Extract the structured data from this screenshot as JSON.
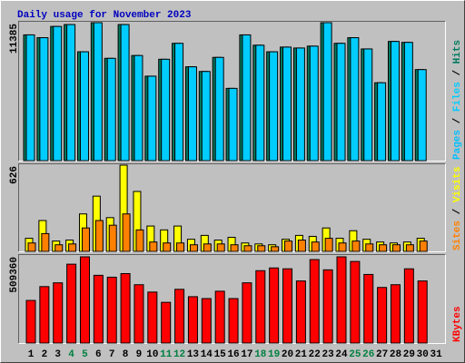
{
  "title": "Daily usage for November 2023",
  "chart_data": [
    {
      "type": "bar",
      "series": [
        {
          "name": "Hits",
          "color": "#007a5e",
          "values": [
            10378,
            10146,
            11075,
            11230,
            8984,
            11385,
            8442,
            11230,
            8674,
            6970,
            8365,
            9681,
            7745,
            7358,
            8520,
            5964,
            10378,
            9526,
            8984,
            9371,
            9294,
            9449,
            11385,
            9681,
            10146,
            9217,
            6428,
            9836,
            9759,
            7513,
            null
          ]
        },
        {
          "name": "Files",
          "color": "#00ccff",
          "values": [
            10378,
            10146,
            11075,
            11230,
            8984,
            11385,
            8442,
            11230,
            8674,
            6970,
            8365,
            9681,
            7745,
            7358,
            8520,
            5964,
            10378,
            9526,
            8984,
            9371,
            9294,
            9449,
            11385,
            9681,
            10146,
            9217,
            6428,
            9836,
            9759,
            7513,
            null
          ]
        }
      ],
      "extra_legend": {
        "name": "Pages",
        "color": "#00c0ff"
      },
      "legend_separator": " / ",
      "ylim": [
        0,
        11385
      ],
      "yticks": [
        11385
      ]
    },
    {
      "type": "bar",
      "series": [
        {
          "name": "Visits",
          "color": "#ffff00",
          "values": [
            95,
            224,
            75,
            82,
            272,
            401,
            245,
            626,
            435,
            184,
            156,
            184,
            88,
            116,
            82,
            102,
            61,
            54,
            48,
            88,
            116,
            109,
            170,
            95,
            150,
            88,
            68,
            61,
            68,
            95,
            null
          ]
        },
        {
          "name": "Sites",
          "color": "#ff8000",
          "values": [
            61,
            129,
            48,
            54,
            170,
            224,
            190,
            272,
            156,
            68,
            61,
            61,
            48,
            54,
            54,
            48,
            41,
            41,
            34,
            75,
            82,
            68,
            95,
            61,
            75,
            54,
            48,
            48,
            48,
            75,
            null
          ]
        }
      ],
      "legend_separator": " / ",
      "ylim": [
        0,
        626
      ],
      "yticks": [
        626
      ]
    },
    {
      "type": "bar",
      "series": [
        {
          "name": "KBytes",
          "color": "#ff0000",
          "values": [
            249000,
            330000,
            352000,
            461000,
            504000,
            396000,
            385000,
            406000,
            341000,
            298000,
            238000,
            314000,
            271000,
            260000,
            303000,
            260000,
            352000,
            423000,
            439000,
            434000,
            363000,
            488000,
            428000,
            504000,
            477000,
            401000,
            325000,
            341000,
            434000,
            363000,
            null
          ]
        }
      ],
      "categories": [
        "1",
        "2",
        "3",
        "4",
        "5",
        "6",
        "7",
        "8",
        "9",
        "10",
        "11",
        "12",
        "13",
        "14",
        "15",
        "16",
        "17",
        "18",
        "19",
        "20",
        "21",
        "22",
        "23",
        "24",
        "25",
        "26",
        "27",
        "28",
        "29",
        "30",
        "31"
      ],
      "weekend_days": [
        4,
        5,
        11,
        12,
        18,
        19,
        25,
        26
      ],
      "weekend_color": "#008040",
      "ylim": [
        0,
        509360
      ],
      "yticks": [
        509360
      ]
    }
  ]
}
